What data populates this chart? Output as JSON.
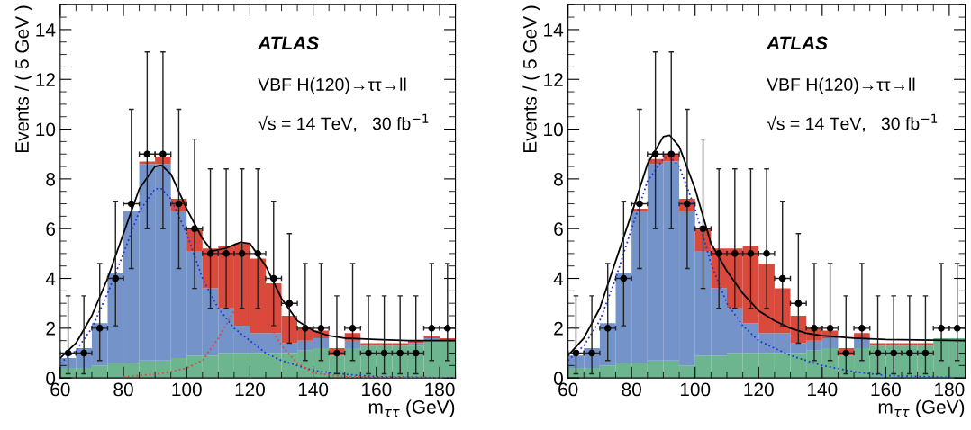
{
  "chart_data": [
    {
      "type": "bar",
      "xlabel": "m$_{ττ}$ (GeV)",
      "ylabel": "Events / ( 5 GeV )",
      "stacked": true,
      "grid": false,
      "annotations": [
        "ATLAS",
        "VBF H(120)→ττ→ll",
        "√s = 14 TeV,   30 fb$^{−1}$"
      ],
      "xlim": [
        60,
        185
      ],
      "xticks": [
        60,
        80,
        100,
        120,
        140,
        160,
        180
      ],
      "ylim": [
        0,
        15
      ],
      "yticks": [
        0,
        2,
        4,
        6,
        8,
        10,
        12,
        14
      ],
      "x": [
        62.5,
        67.5,
        72.5,
        77.5,
        82.5,
        87.5,
        92.5,
        97.5,
        102.5,
        107.5,
        112.5,
        117.5,
        122.5,
        127.5,
        132.5,
        137.5,
        142.5,
        147.5,
        152.5,
        157.5,
        162.5,
        167.5,
        172.5,
        177.5,
        182.5
      ],
      "series": [
        {
          "color": "#6cb58e",
          "values": [
            0.4,
            0.4,
            0.5,
            0.6,
            0.6,
            0.7,
            0.7,
            0.8,
            0.9,
            0.9,
            1.0,
            1.0,
            1.0,
            1.0,
            1.0,
            1.1,
            1.2,
            0.9,
            1.2,
            1.3,
            1.3,
            1.3,
            1.3,
            1.5,
            1.5
          ]
        },
        {
          "color": "#7393c9",
          "values": [
            0.4,
            0.8,
            1.7,
            3.6,
            6.1,
            7.9,
            7.9,
            5.9,
            4.2,
            2.7,
            1.8,
            1.1,
            0.8,
            0.8,
            0.4,
            0.4,
            0.4,
            0.0,
            0.3,
            0.0,
            0.0,
            0.0,
            0.1,
            0.1,
            0.0
          ]
        },
        {
          "color": "#d9493c",
          "values": [
            0.0,
            0.0,
            0.0,
            0.0,
            0.0,
            0.1,
            0.3,
            0.5,
            0.9,
            1.6,
            2.5,
            3.3,
            3.0,
            2.0,
            1.1,
            0.5,
            0.3,
            0.3,
            0.3,
            0.1,
            0.1,
            0.1,
            0.1,
            0.1,
            0.1
          ]
        },
        {
          "type": "scatter",
          "color": "#000000",
          "marker": "circle",
          "x": [
            62.5,
            67.5,
            72.5,
            77.5,
            82.5,
            87.5,
            92.5,
            97.5,
            102.5,
            107.5,
            112.5,
            117.5,
            122.5,
            127.5,
            132.5,
            137.5,
            142.5,
            147.5,
            152.5,
            157.5,
            162.5,
            167.5,
            172.5,
            177.5,
            182.5
          ],
          "values": [
            1,
            1,
            2,
            4,
            7,
            9,
            9,
            7,
            6,
            5,
            5,
            5,
            5,
            4,
            3,
            2,
            2,
            1,
            2,
            1,
            1,
            1,
            1,
            2,
            2
          ],
          "errors": [
            [
              0.17,
              3.3
            ],
            [
              0.17,
              3.3
            ],
            [
              0.7,
              4.6
            ],
            [
              2.1,
              7.1
            ],
            [
              4.4,
              10.8
            ],
            [
              6.0,
              13.1
            ],
            [
              6.0,
              13.1
            ],
            [
              4.4,
              10.8
            ],
            [
              3.6,
              9.6
            ],
            [
              2.8,
              8.4
            ],
            [
              2.8,
              8.4
            ],
            [
              2.8,
              8.4
            ],
            [
              2.8,
              8.4
            ],
            [
              2.1,
              7.1
            ],
            [
              1.4,
              5.8
            ],
            [
              0.7,
              4.6
            ],
            [
              0.7,
              4.6
            ],
            [
              0.17,
              3.3
            ],
            [
              0.7,
              4.6
            ],
            [
              0.17,
              3.3
            ],
            [
              0.17,
              3.3
            ],
            [
              0.17,
              3.3
            ],
            [
              0.17,
              3.3
            ],
            [
              0.7,
              4.6
            ],
            [
              0.7,
              4.6
            ]
          ],
          "xerrors": [
            2.5,
            2.5,
            2.5,
            2.5,
            2.5,
            2.5,
            2.5,
            2.5,
            2.5,
            2.5,
            2.5,
            2.5,
            2.5,
            2.5,
            2.5,
            2.5,
            2.5,
            2.5,
            2.5,
            2.5,
            2.5,
            2.5,
            2.5,
            2.5,
            2.5
          ]
        },
        {
          "type": "line",
          "color": "#2233dd",
          "line_style": "dotted",
          "x": [
            60,
            65,
            70,
            75,
            80,
            85,
            90,
            92,
            95,
            100,
            105,
            110,
            115,
            120,
            125,
            130,
            140,
            150,
            160,
            185
          ],
          "values": [
            0.6,
            1.1,
            2.0,
            3.4,
            5.0,
            6.7,
            7.6,
            7.6,
            7.2,
            5.8,
            4.0,
            2.8,
            2.0,
            1.5,
            1.0,
            0.7,
            0.3,
            0.15,
            0.05,
            0.0
          ]
        },
        {
          "type": "line",
          "color": "#dd4444",
          "line_style": "dotted",
          "x": [
            80,
            90,
            95,
            100,
            105,
            110,
            115,
            119,
            122,
            125,
            130,
            135,
            140,
            150,
            185
          ],
          "values": [
            0.05,
            0.15,
            0.25,
            0.4,
            0.7,
            1.6,
            2.7,
            3.2,
            3.0,
            2.4,
            1.3,
            0.6,
            0.2,
            0.05,
            0.0
          ]
        },
        {
          "type": "line",
          "color": "#000000",
          "line_style": "solid",
          "x": [
            60,
            65,
            70,
            75,
            80,
            85,
            90,
            92,
            95,
            100,
            105,
            108,
            112,
            117,
            120,
            125,
            130,
            135,
            140,
            145,
            150,
            160,
            170,
            185
          ],
          "values": [
            0.8,
            1.4,
            2.5,
            4.0,
            5.8,
            7.6,
            8.5,
            8.55,
            8.2,
            6.8,
            5.6,
            5.1,
            5.2,
            5.45,
            5.4,
            4.5,
            3.2,
            2.3,
            1.9,
            1.7,
            1.6,
            1.55,
            1.5,
            1.5
          ]
        }
      ]
    },
    {
      "type": "bar",
      "xlabel": "m$_{ττ}$ (GeV)",
      "ylabel": "Events / ( 5 GeV )",
      "stacked": true,
      "grid": false,
      "annotations": [
        "ATLAS",
        "VBF H(120)→ττ→ll",
        "√s = 14 TeV,   30 fb$^{−1}$"
      ],
      "xlim": [
        60,
        185
      ],
      "xticks": [
        60,
        80,
        100,
        120,
        140,
        160,
        180
      ],
      "ylim": [
        0,
        15
      ],
      "yticks": [
        0,
        2,
        4,
        6,
        8,
        10,
        12,
        14
      ],
      "x": [
        62.5,
        67.5,
        72.5,
        77.5,
        82.5,
        87.5,
        92.5,
        97.5,
        102.5,
        107.5,
        112.5,
        117.5,
        122.5,
        127.5,
        132.5,
        137.5,
        142.5,
        147.5,
        152.5,
        157.5,
        162.5,
        167.5,
        172.5,
        177.5,
        182.5
      ],
      "series": [
        {
          "color": "#6cb58e",
          "values": [
            0.4,
            0.4,
            0.5,
            0.6,
            0.6,
            0.7,
            0.7,
            0.5,
            0.9,
            0.9,
            1.0,
            1.0,
            1.0,
            1.0,
            1.0,
            1.1,
            1.2,
            0.9,
            1.2,
            1.3,
            1.3,
            1.3,
            1.3,
            1.6,
            1.6
          ]
        },
        {
          "color": "#7393c9",
          "values": [
            0.5,
            0.8,
            1.7,
            3.6,
            6.1,
            7.9,
            8.0,
            6.2,
            4.2,
            2.7,
            1.8,
            1.2,
            0.8,
            0.8,
            0.4,
            0.4,
            0.4,
            0.0,
            0.4,
            0.0,
            0.0,
            0.0,
            0.0,
            0.0,
            0.0
          ]
        },
        {
          "color": "#d9493c",
          "values": [
            0.0,
            0.0,
            0.0,
            0.0,
            0.1,
            0.2,
            0.3,
            0.5,
            0.9,
            1.6,
            2.4,
            3.1,
            2.8,
            1.8,
            1.1,
            0.5,
            0.3,
            0.3,
            0.2,
            0.1,
            0.1,
            0.1,
            0.1,
            0.0,
            0.0
          ]
        },
        {
          "type": "scatter",
          "color": "#000000",
          "marker": "circle",
          "x": [
            62.5,
            67.5,
            72.5,
            77.5,
            82.5,
            87.5,
            92.5,
            97.5,
            102.5,
            107.5,
            112.5,
            117.5,
            122.5,
            127.5,
            132.5,
            137.5,
            142.5,
            147.5,
            152.5,
            157.5,
            162.5,
            167.5,
            172.5,
            177.5,
            182.5
          ],
          "values": [
            1,
            1,
            2,
            4,
            7,
            9,
            9,
            7,
            6,
            5,
            5,
            5,
            5,
            4,
            3,
            2,
            2,
            1,
            2,
            1,
            1,
            1,
            1,
            2,
            2
          ],
          "errors": [
            [
              0.17,
              3.3
            ],
            [
              0.17,
              3.3
            ],
            [
              0.7,
              4.6
            ],
            [
              2.1,
              7.1
            ],
            [
              4.4,
              10.8
            ],
            [
              6.0,
              13.1
            ],
            [
              6.0,
              13.1
            ],
            [
              4.4,
              10.8
            ],
            [
              3.6,
              9.6
            ],
            [
              2.8,
              8.4
            ],
            [
              2.8,
              8.4
            ],
            [
              2.8,
              8.4
            ],
            [
              2.8,
              8.4
            ],
            [
              2.1,
              7.1
            ],
            [
              1.4,
              5.8
            ],
            [
              0.7,
              4.6
            ],
            [
              0.7,
              4.6
            ],
            [
              0.17,
              3.3
            ],
            [
              0.7,
              4.6
            ],
            [
              0.17,
              3.3
            ],
            [
              0.17,
              3.3
            ],
            [
              0.17,
              3.3
            ],
            [
              0.17,
              3.3
            ],
            [
              0.7,
              4.6
            ],
            [
              0.7,
              4.6
            ]
          ],
          "xerrors": [
            2.5,
            2.5,
            2.5,
            2.5,
            2.5,
            2.5,
            2.5,
            2.5,
            2.5,
            2.5,
            2.5,
            2.5,
            2.5,
            2.5,
            2.5,
            2.5,
            2.5,
            2.5,
            2.5,
            2.5,
            2.5,
            2.5,
            2.5,
            2.5,
            2.5
          ]
        },
        {
          "type": "line",
          "color": "#2233dd",
          "line_style": "dotted",
          "x": [
            60,
            65,
            70,
            75,
            80,
            85,
            90,
            92,
            95,
            100,
            105,
            110,
            115,
            120,
            125,
            130,
            140,
            150,
            160,
            185
          ],
          "values": [
            0.7,
            1.3,
            2.3,
            4.0,
            6.0,
            7.9,
            8.8,
            8.9,
            8.5,
            6.8,
            4.6,
            3.0,
            2.1,
            1.5,
            1.2,
            0.9,
            0.5,
            0.25,
            0.1,
            0.0
          ]
        },
        {
          "type": "line",
          "color": "#000000",
          "line_style": "solid",
          "x": [
            60,
            65,
            70,
            75,
            80,
            85,
            90,
            92,
            95,
            100,
            105,
            110,
            115,
            120,
            125,
            130,
            135,
            140,
            150,
            160,
            185
          ],
          "values": [
            0.9,
            1.6,
            2.8,
            4.7,
            6.6,
            8.6,
            9.7,
            9.75,
            9.3,
            7.6,
            5.4,
            4.3,
            3.4,
            2.7,
            2.3,
            2.0,
            1.8,
            1.7,
            1.6,
            1.55,
            1.5
          ]
        }
      ]
    }
  ]
}
